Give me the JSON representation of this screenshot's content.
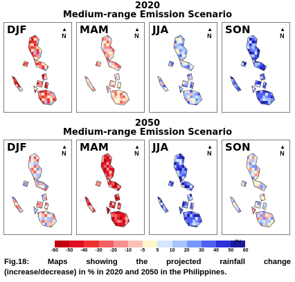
{
  "map_data": {
    "type": "choropleth",
    "region": "Philippines",
    "variable": "projected rainfall change",
    "unit": "%",
    "palette_low": "#e01020",
    "palette_mid": "#fff8c0",
    "palette_high": "#1a1aa0"
  },
  "sections": [
    {
      "year": "2020",
      "scenario": "Medium-range Emission Scenario",
      "panels": [
        {
          "season": "DJF",
          "tone": "red_mixed"
        },
        {
          "season": "MAM",
          "tone": "light_red"
        },
        {
          "season": "JJA",
          "tone": "blue_mixed"
        },
        {
          "season": "SON",
          "tone": "blue_strong"
        }
      ]
    },
    {
      "year": "2050",
      "scenario": "Medium-range Emission Scenario",
      "panels": [
        {
          "season": "DJF",
          "tone": "mixed"
        },
        {
          "season": "MAM",
          "tone": "red_strong"
        },
        {
          "season": "JJA",
          "tone": "blue_strong"
        },
        {
          "season": "SON",
          "tone": "mixed_light"
        }
      ]
    }
  ],
  "north_arrow": "N",
  "legend": {
    "labels": [
      "-60",
      "-50",
      "-40",
      "-30",
      "-20",
      "-10",
      "-5",
      "5",
      "10",
      "20",
      "30",
      "40",
      "50",
      "60"
    ],
    "colors": [
      "#c00010",
      "#e01020",
      "#f03030",
      "#f46060",
      "#f79090",
      "#fbc0b8",
      "#fff6c8",
      "#d6e6ff",
      "#a8c4ff",
      "#7896ff",
      "#5060f0",
      "#2c30d8",
      "#1a1aa0"
    ],
    "unit": "(%)"
  },
  "caption": {
    "line1": "Fig.18:  Maps  showing  the  projected  rainfall  change",
    "line2": "(increase/decrease) in % in 2020 and 2050 in the Philippines."
  }
}
